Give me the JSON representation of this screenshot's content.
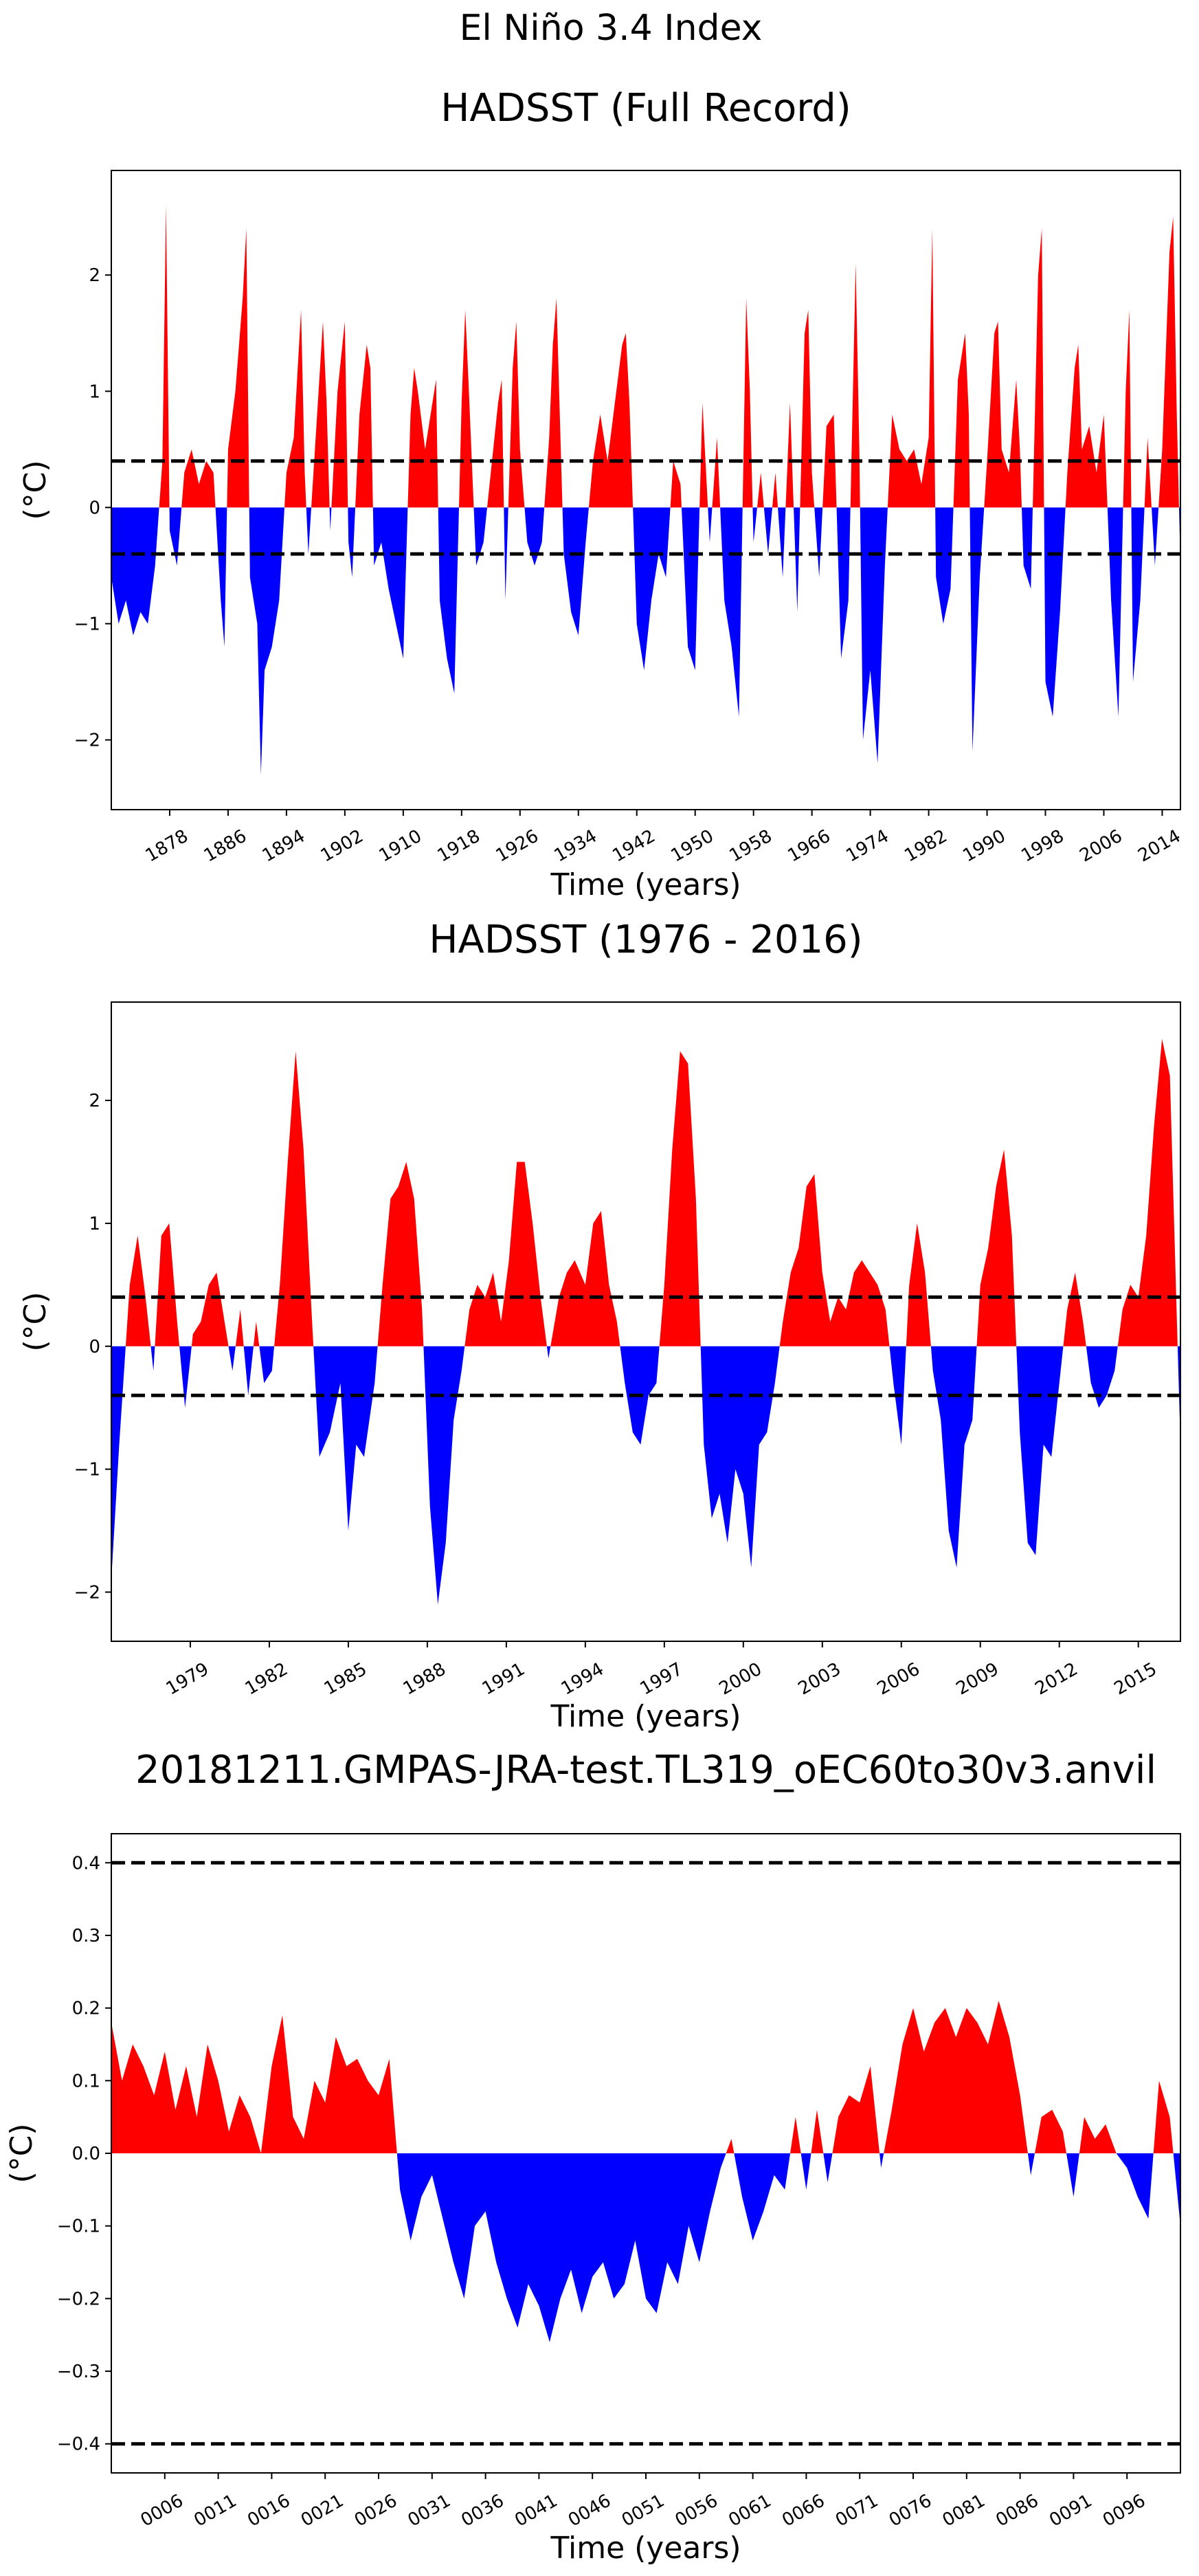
{
  "figure": {
    "suptitle": "El Niño 3.4 Index"
  },
  "colors": {
    "positive": "#ff0000",
    "negative": "#0000ff",
    "threshold": "#000000"
  },
  "chart_data": [
    {
      "type": "area",
      "title": "HADSST (Full Record)",
      "xlabel": "Time (years)",
      "ylabel": "(°C)",
      "xlim": [
        1870,
        2016.5
      ],
      "ylim": [
        -2.6,
        2.9
      ],
      "yticks": [
        -2,
        -1,
        0,
        1,
        2
      ],
      "yticklabels": [
        "−2",
        "−1",
        "0",
        "1",
        "2"
      ],
      "xticks": [
        1878,
        1886,
        1894,
        1902,
        1910,
        1918,
        1926,
        1934,
        1942,
        1950,
        1958,
        1966,
        1974,
        1982,
        1990,
        1998,
        2006,
        2014
      ],
      "xticklabels": [
        "1878",
        "1886",
        "1894",
        "1902",
        "1910",
        "1918",
        "1926",
        "1934",
        "1942",
        "1950",
        "1958",
        "1966",
        "1974",
        "1982",
        "1990",
        "1998",
        "2006",
        "2014"
      ],
      "thresholds": [
        0.4,
        -0.4
      ],
      "grid": false,
      "series": [
        {
          "x": [
            1870,
            1871,
            1872,
            1873,
            1874,
            1875,
            1876,
            1877,
            1877.5,
            1878,
            1879,
            1880,
            1881,
            1882,
            1883,
            1884,
            1885,
            1885.5,
            1886,
            1887,
            1888,
            1888.5,
            1889,
            1890,
            1890.5,
            1891,
            1892,
            1893,
            1894,
            1895,
            1896,
            1896.5,
            1897,
            1898,
            1899,
            1899.5,
            1900,
            1901,
            1902,
            1902.5,
            1903,
            1904,
            1905,
            1905.5,
            1906,
            1907,
            1908,
            1909,
            1910,
            1911,
            1911.5,
            1912,
            1913,
            1914,
            1914.5,
            1915,
            1916,
            1917,
            1918,
            1918.5,
            1919,
            1920,
            1921,
            1922,
            1923,
            1923.5,
            1924,
            1925,
            1925.5,
            1926,
            1927,
            1928,
            1929,
            1930,
            1930.5,
            1931,
            1932,
            1933,
            1934,
            1935,
            1936,
            1937,
            1938,
            1939,
            1940,
            1940.5,
            1941,
            1942,
            1943,
            1944,
            1945,
            1946,
            1947,
            1948,
            1949,
            1950,
            1951,
            1952,
            1953,
            1954,
            1955,
            1956,
            1957,
            1957.5,
            1958,
            1959,
            1960,
            1961,
            1962,
            1963,
            1964,
            1965,
            1965.5,
            1966,
            1967,
            1968,
            1969,
            1970,
            1971,
            1972,
            1972.5,
            1973,
            1974,
            1975,
            1976,
            1977,
            1978,
            1979,
            1980,
            1981,
            1982,
            1982.5,
            1983,
            1984,
            1985,
            1986,
            1987,
            1987.5,
            1988,
            1989,
            1990,
            1991,
            1991.5,
            1992,
            1993,
            1994,
            1994.5,
            1995,
            1996,
            1997,
            1997.5,
            1998,
            1999,
            2000,
            2001,
            2002,
            2002.5,
            2003,
            2004,
            2005,
            2006,
            2007,
            2008,
            2009,
            2009.5,
            2010,
            2011,
            2012,
            2013,
            2014,
            2015,
            2015.5,
            2016,
            2016.5
          ],
          "values": [
            -0.6,
            -1.0,
            -0.8,
            -1.1,
            -0.9,
            -1.0,
            -0.5,
            0.4,
            2.6,
            -0.2,
            -0.5,
            0.3,
            0.5,
            0.2,
            0.4,
            0.3,
            -0.8,
            -1.2,
            0.5,
            1.0,
            1.8,
            2.4,
            -0.6,
            -1.0,
            -2.3,
            -1.4,
            -1.2,
            -0.8,
            0.3,
            0.6,
            1.7,
            0.3,
            -0.4,
            0.6,
            1.6,
            0.9,
            -0.2,
            1.0,
            1.6,
            -0.3,
            -0.6,
            0.8,
            1.4,
            1.2,
            -0.5,
            -0.3,
            -0.7,
            -1.0,
            -1.3,
            0.8,
            1.2,
            1.0,
            0.5,
            0.9,
            1.1,
            -0.8,
            -1.3,
            -1.6,
            0.9,
            1.7,
            1.0,
            -0.5,
            -0.3,
            0.3,
            0.9,
            1.1,
            -0.8,
            1.2,
            1.6,
            0.5,
            -0.3,
            -0.5,
            -0.3,
            0.6,
            1.4,
            1.8,
            -0.4,
            -0.9,
            -1.1,
            -0.3,
            0.4,
            0.8,
            0.4,
            0.9,
            1.4,
            1.5,
            0.9,
            -1.0,
            -1.4,
            -0.8,
            -0.4,
            -0.6,
            0.4,
            0.2,
            -1.2,
            -1.4,
            0.9,
            -0.3,
            0.6,
            -0.8,
            -1.2,
            -1.8,
            1.8,
            1.0,
            -0.3,
            0.3,
            -0.4,
            0.3,
            -0.6,
            0.9,
            -0.9,
            1.5,
            1.7,
            0.3,
            -0.6,
            0.7,
            0.8,
            -1.3,
            -0.8,
            2.1,
            0.5,
            -2.0,
            -1.4,
            -2.2,
            -0.5,
            0.8,
            0.5,
            0.4,
            0.5,
            0.2,
            0.6,
            2.4,
            -0.6,
            -1.0,
            -0.7,
            1.1,
            1.5,
            0.8,
            -2.1,
            -0.6,
            0.4,
            1.5,
            1.6,
            0.5,
            0.3,
            1.1,
            0.5,
            -0.5,
            -0.7,
            2.0,
            2.4,
            -1.5,
            -1.8,
            -0.9,
            0.3,
            1.2,
            1.4,
            0.5,
            0.7,
            0.3,
            0.8,
            -0.8,
            -1.8,
            1.0,
            1.7,
            -1.5,
            -0.8,
            0.6,
            -0.5,
            0.5,
            2.2,
            2.5,
            0.8,
            -0.5
          ]
        }
      ]
    },
    {
      "type": "area",
      "title": "HADSST (1976 - 2016)",
      "xlabel": "Time (years)",
      "ylabel": "(°C)",
      "xlim": [
        1976,
        2016.6
      ],
      "ylim": [
        -2.4,
        2.8
      ],
      "yticks": [
        -2,
        -1,
        0,
        1,
        2
      ],
      "yticklabels": [
        "−2",
        "−1",
        "0",
        "1",
        "2"
      ],
      "xticks": [
        1979,
        1982,
        1985,
        1988,
        1991,
        1994,
        1997,
        2000,
        2003,
        2006,
        2009,
        2012,
        2015
      ],
      "xticklabels": [
        "1979",
        "1982",
        "1985",
        "1988",
        "1991",
        "1994",
        "1997",
        "2000",
        "2003",
        "2006",
        "2009",
        "2012",
        "2015"
      ],
      "thresholds": [
        0.4,
        -0.4
      ],
      "grid": false,
      "series": [
        {
          "x": [
            1976.0,
            1976.3,
            1976.7,
            1977.0,
            1977.3,
            1977.6,
            1977.9,
            1978.2,
            1978.5,
            1978.8,
            1979.1,
            1979.4,
            1979.7,
            1980.0,
            1980.3,
            1980.6,
            1980.9,
            1981.2,
            1981.5,
            1981.8,
            1982.1,
            1982.4,
            1982.7,
            1983.0,
            1983.3,
            1983.6,
            1983.9,
            1984.3,
            1984.7,
            1985.0,
            1985.3,
            1985.6,
            1986.0,
            1986.3,
            1986.6,
            1986.9,
            1987.2,
            1987.5,
            1987.8,
            1988.1,
            1988.4,
            1988.7,
            1989.0,
            1989.3,
            1989.6,
            1989.9,
            1990.2,
            1990.5,
            1990.8,
            1991.1,
            1991.4,
            1991.7,
            1992.0,
            1992.3,
            1992.6,
            1993.0,
            1993.3,
            1993.6,
            1994.0,
            1994.3,
            1994.6,
            1994.9,
            1995.2,
            1995.5,
            1995.8,
            1996.1,
            1996.4,
            1996.7,
            1997.0,
            1997.3,
            1997.6,
            1997.9,
            1998.2,
            1998.5,
            1998.8,
            1999.1,
            1999.4,
            1999.7,
            2000.0,
            2000.3,
            2000.6,
            2000.9,
            2001.2,
            2001.5,
            2001.8,
            2002.1,
            2002.4,
            2002.7,
            2003.0,
            2003.3,
            2003.6,
            2003.9,
            2004.2,
            2004.5,
            2004.8,
            2005.1,
            2005.4,
            2005.7,
            2006.0,
            2006.3,
            2006.6,
            2006.9,
            2007.2,
            2007.5,
            2007.8,
            2008.1,
            2008.4,
            2008.7,
            2009.0,
            2009.3,
            2009.6,
            2009.9,
            2010.2,
            2010.5,
            2010.8,
            2011.1,
            2011.4,
            2011.7,
            2012.0,
            2012.3,
            2012.6,
            2012.9,
            2013.2,
            2013.5,
            2013.8,
            2014.1,
            2014.4,
            2014.7,
            2015.0,
            2015.3,
            2015.6,
            2015.9,
            2016.2,
            2016.6
          ],
          "values": [
            -1.9,
            -0.8,
            0.5,
            0.9,
            0.4,
            -0.2,
            0.9,
            1.0,
            0.2,
            -0.5,
            0.1,
            0.2,
            0.5,
            0.6,
            0.2,
            -0.2,
            0.3,
            -0.4,
            0.2,
            -0.3,
            -0.2,
            0.5,
            1.5,
            2.4,
            1.6,
            0.3,
            -0.9,
            -0.7,
            -0.3,
            -1.5,
            -0.8,
            -0.9,
            -0.3,
            0.5,
            1.2,
            1.3,
            1.5,
            1.2,
            0.3,
            -1.3,
            -2.1,
            -1.6,
            -0.6,
            -0.2,
            0.3,
            0.5,
            0.4,
            0.6,
            0.2,
            0.7,
            1.5,
            1.5,
            1.0,
            0.4,
            -0.1,
            0.4,
            0.6,
            0.7,
            0.5,
            1.0,
            1.1,
            0.5,
            0.2,
            -0.3,
            -0.7,
            -0.8,
            -0.4,
            -0.3,
            0.5,
            1.6,
            2.4,
            2.3,
            1.2,
            -0.8,
            -1.4,
            -1.2,
            -1.6,
            -1.0,
            -1.2,
            -1.8,
            -0.8,
            -0.7,
            -0.3,
            0.2,
            0.6,
            0.8,
            1.3,
            1.4,
            0.6,
            0.2,
            0.4,
            0.3,
            0.6,
            0.7,
            0.6,
            0.5,
            0.3,
            -0.3,
            -0.8,
            0.5,
            1.0,
            0.6,
            -0.2,
            -0.6,
            -1.5,
            -1.8,
            -0.8,
            -0.6,
            0.5,
            0.8,
            1.3,
            1.6,
            0.9,
            -0.7,
            -1.6,
            -1.7,
            -0.8,
            -0.9,
            -0.3,
            0.3,
            0.6,
            0.2,
            -0.3,
            -0.5,
            -0.4,
            -0.2,
            0.3,
            0.5,
            0.4,
            0.9,
            1.8,
            2.5,
            2.2,
            -0.8
          ]
        }
      ]
    },
    {
      "type": "area",
      "title": "20181211.GMPAS-JRA-test.TL319_oEC60to30v3.anvil",
      "xlabel": "Time (years)",
      "ylabel": "(°C)",
      "xlim": [
        1,
        101
      ],
      "ylim": [
        -0.44,
        0.44
      ],
      "yticks": [
        -0.4,
        -0.3,
        -0.2,
        -0.1,
        0.0,
        0.1,
        0.2,
        0.3,
        0.4
      ],
      "yticklabels": [
        "−0.4",
        "−0.3",
        "−0.2",
        "−0.1",
        "0.0",
        "0.1",
        "0.2",
        "0.3",
        "0.4"
      ],
      "xticks": [
        6,
        11,
        16,
        21,
        26,
        31,
        36,
        41,
        46,
        51,
        56,
        61,
        66,
        71,
        76,
        81,
        86,
        91,
        96
      ],
      "xticklabels": [
        "0006",
        "0011",
        "0016",
        "0021",
        "0026",
        "0031",
        "0036",
        "0041",
        "0046",
        "0051",
        "0056",
        "0061",
        "0066",
        "0071",
        "0076",
        "0081",
        "0086",
        "0091",
        "0096"
      ],
      "thresholds": [
        0.4,
        -0.4
      ],
      "grid": false,
      "series": [
        {
          "x": [
            1,
            2,
            3,
            4,
            5,
            6,
            7,
            8,
            9,
            10,
            11,
            12,
            13,
            14,
            15,
            16,
            17,
            18,
            19,
            20,
            21,
            22,
            23,
            24,
            25,
            26,
            27,
            28,
            29,
            30,
            31,
            32,
            33,
            34,
            35,
            36,
            37,
            38,
            39,
            40,
            41,
            42,
            43,
            44,
            45,
            46,
            47,
            48,
            49,
            50,
            51,
            52,
            53,
            54,
            55,
            56,
            57,
            58,
            59,
            60,
            61,
            62,
            63,
            64,
            65,
            66,
            67,
            68,
            69,
            70,
            71,
            72,
            73,
            74,
            75,
            76,
            77,
            78,
            79,
            80,
            81,
            82,
            83,
            84,
            85,
            86,
            87,
            88,
            89,
            90,
            91,
            92,
            93,
            94,
            95,
            96,
            97,
            98,
            99,
            100,
            101
          ],
          "values": [
            0.18,
            0.1,
            0.15,
            0.12,
            0.08,
            0.14,
            0.06,
            0.12,
            0.05,
            0.15,
            0.1,
            0.03,
            0.08,
            0.05,
            0.0,
            0.12,
            0.19,
            0.05,
            0.02,
            0.1,
            0.07,
            0.16,
            0.12,
            0.13,
            0.1,
            0.08,
            0.13,
            -0.05,
            -0.12,
            -0.06,
            -0.03,
            -0.09,
            -0.15,
            -0.2,
            -0.1,
            -0.08,
            -0.15,
            -0.2,
            -0.24,
            -0.18,
            -0.21,
            -0.26,
            -0.2,
            -0.16,
            -0.22,
            -0.17,
            -0.15,
            -0.2,
            -0.18,
            -0.12,
            -0.2,
            -0.22,
            -0.15,
            -0.18,
            -0.1,
            -0.15,
            -0.08,
            -0.02,
            0.02,
            -0.06,
            -0.12,
            -0.08,
            -0.03,
            -0.05,
            0.05,
            -0.05,
            0.06,
            -0.04,
            0.05,
            0.08,
            0.07,
            0.12,
            -0.02,
            0.06,
            0.15,
            0.2,
            0.14,
            0.18,
            0.2,
            0.16,
            0.2,
            0.18,
            0.15,
            0.21,
            0.16,
            0.08,
            -0.03,
            0.05,
            0.06,
            0.03,
            -0.06,
            0.05,
            0.02,
            0.04,
            0.0,
            -0.02,
            -0.06,
            -0.09,
            0.1,
            0.05,
            -0.1
          ]
        }
      ]
    }
  ]
}
